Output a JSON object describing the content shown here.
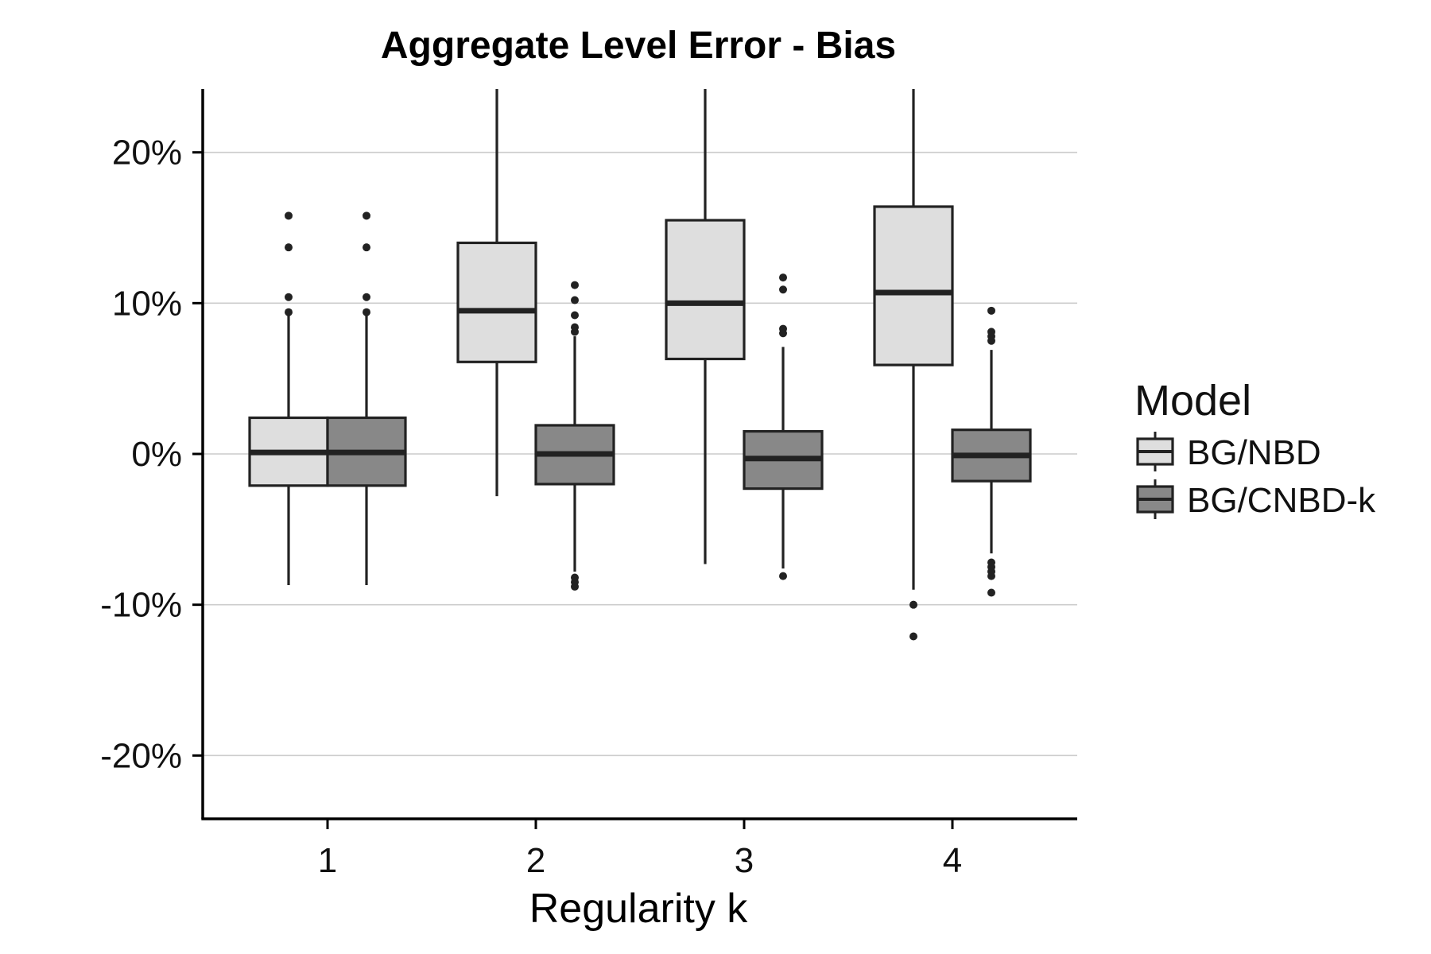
{
  "chart_data": {
    "type": "boxplot",
    "title": "Aggregate Level Error - Bias",
    "xlabel": "Regularity k",
    "ylabel": "",
    "ylim": [
      -24.2,
      24.2
    ],
    "y_ticks": [
      -20,
      -10,
      0,
      10,
      20
    ],
    "y_tick_labels": [
      "-20%",
      "-10%",
      "0%",
      "10%",
      "20%"
    ],
    "categories": [
      "1",
      "2",
      "3",
      "4"
    ],
    "grid": "horizontal major",
    "legend": {
      "title": "Model",
      "placement": "right",
      "entries": [
        "BG/NBD",
        "BG/CNBD-k"
      ]
    },
    "series": [
      {
        "name": "BG/NBD",
        "color": "#dedede",
        "boxes": [
          {
            "category": "1",
            "whisker_low": -8.7,
            "q1": -2.1,
            "median": 0.1,
            "q3": 2.4,
            "whisker_high": 9.4,
            "outliers": [
              9.4,
              10.4,
              13.7,
              15.8
            ]
          },
          {
            "category": "2",
            "whisker_low": -2.8,
            "q1": 6.1,
            "median": 9.5,
            "q3": 14.0,
            "whisker_high": 24.5,
            "outliers": []
          },
          {
            "category": "3",
            "whisker_low": -7.3,
            "q1": 6.3,
            "median": 10.0,
            "q3": 15.5,
            "whisker_high": 24.5,
            "outliers": []
          },
          {
            "category": "4",
            "whisker_low": -9.0,
            "q1": 5.9,
            "median": 10.7,
            "q3": 16.4,
            "whisker_high": 24.5,
            "outliers": [
              -10.0,
              -12.1
            ]
          }
        ]
      },
      {
        "name": "BG/CNBD-k",
        "color": "#888888",
        "boxes": [
          {
            "category": "1",
            "whisker_low": -8.7,
            "q1": -2.1,
            "median": 0.1,
            "q3": 2.4,
            "whisker_high": 9.4,
            "outliers": [
              9.4,
              10.4,
              13.7,
              15.8
            ]
          },
          {
            "category": "2",
            "whisker_low": -7.8,
            "q1": -2.0,
            "median": 0.0,
            "q3": 1.9,
            "whisker_high": 7.8,
            "outliers": [
              -8.2,
              -8.5,
              -8.8,
              8.1,
              8.4,
              9.2,
              10.2,
              11.2
            ]
          },
          {
            "category": "3",
            "whisker_low": -7.6,
            "q1": -2.3,
            "median": -0.3,
            "q3": 1.5,
            "whisker_high": 7.1,
            "outliers": [
              -8.1,
              8.0,
              8.3,
              10.9,
              11.7
            ]
          },
          {
            "category": "4",
            "whisker_low": -6.6,
            "q1": -1.8,
            "median": -0.1,
            "q3": 1.6,
            "whisker_high": 6.9,
            "outliers": [
              -7.2,
              -7.5,
              -7.8,
              -8.1,
              -9.2,
              7.5,
              7.8,
              8.1,
              9.5
            ]
          }
        ]
      }
    ]
  }
}
